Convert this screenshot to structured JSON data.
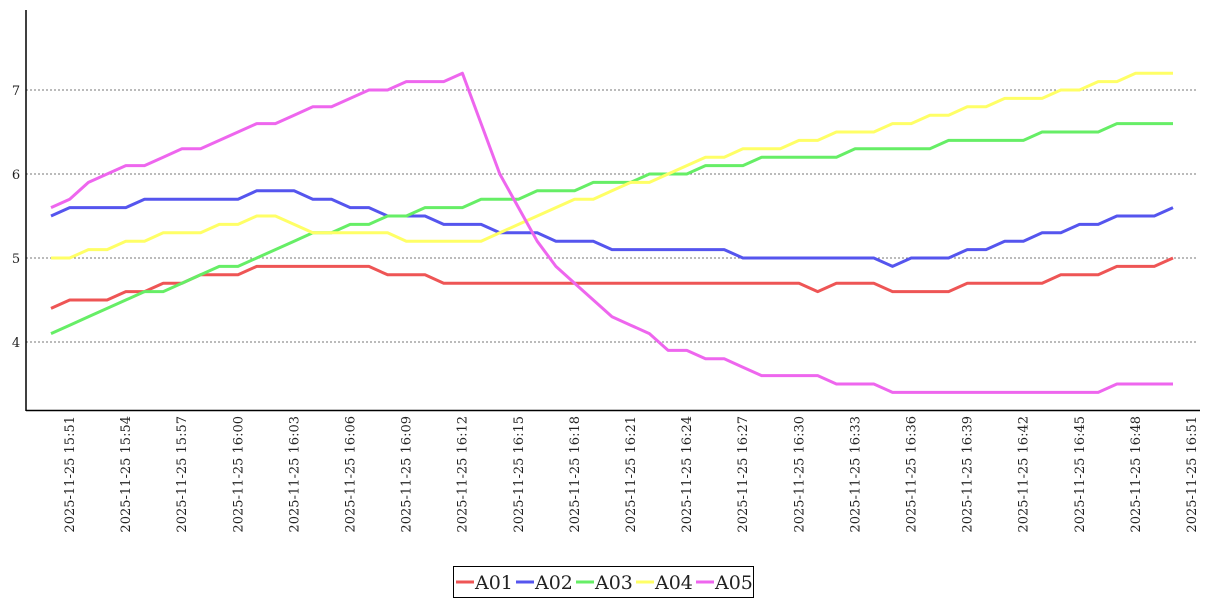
{
  "chart_data": {
    "type": "line",
    "title": "",
    "xlabel": "",
    "ylabel": "",
    "ylim": [
      3.2,
      7.95
    ],
    "yticks": [
      4,
      5,
      6,
      7
    ],
    "grid": "horizontal dotted",
    "legend_position": "bottom-center",
    "x_start": "2025-11-25 15:51",
    "x_step_minutes": 1,
    "x_tick_labels": [
      "2025-11-25 15:51",
      "2025-11-25 15:54",
      "2025-11-25 15:57",
      "2025-11-25 16:00",
      "2025-11-25 16:03",
      "2025-11-25 16:06",
      "2025-11-25 16:09",
      "2025-11-25 16:12",
      "2025-11-25 16:15",
      "2025-11-25 16:18",
      "2025-11-25 16:21",
      "2025-11-25 16:24",
      "2025-11-25 16:27",
      "2025-11-25 16:30",
      "2025-11-25 16:33",
      "2025-11-25 16:36",
      "2025-11-25 16:39",
      "2025-11-25 16:42",
      "2025-11-25 16:45",
      "2025-11-25 16:48",
      "2025-11-25 16:51"
    ],
    "series": [
      {
        "name": "A01",
        "color": "#ee5555",
        "values": [
          4.4,
          4.5,
          4.5,
          4.5,
          4.6,
          4.6,
          4.7,
          4.7,
          4.8,
          4.8,
          4.8,
          4.9,
          4.9,
          4.9,
          4.9,
          4.9,
          4.9,
          4.9,
          4.8,
          4.8,
          4.8,
          4.7,
          4.7,
          4.7,
          4.7,
          4.7,
          4.7,
          4.7,
          4.7,
          4.7,
          4.7,
          4.7,
          4.7,
          4.7,
          4.7,
          4.7,
          4.7,
          4.7,
          4.7,
          4.7,
          4.7,
          4.6,
          4.7,
          4.7,
          4.7,
          4.6,
          4.6,
          4.6,
          4.6,
          4.7,
          4.7,
          4.7,
          4.7,
          4.7,
          4.8,
          4.8,
          4.8,
          4.9,
          4.9,
          4.9,
          5.0
        ]
      },
      {
        "name": "A02",
        "color": "#5555ee",
        "values": [
          5.5,
          5.6,
          5.6,
          5.6,
          5.6,
          5.7,
          5.7,
          5.7,
          5.7,
          5.7,
          5.7,
          5.8,
          5.8,
          5.8,
          5.7,
          5.7,
          5.6,
          5.6,
          5.5,
          5.5,
          5.5,
          5.4,
          5.4,
          5.4,
          5.3,
          5.3,
          5.3,
          5.2,
          5.2,
          5.2,
          5.1,
          5.1,
          5.1,
          5.1,
          5.1,
          5.1,
          5.1,
          5.0,
          5.0,
          5.0,
          5.0,
          5.0,
          5.0,
          5.0,
          5.0,
          4.9,
          5.0,
          5.0,
          5.0,
          5.1,
          5.1,
          5.2,
          5.2,
          5.3,
          5.3,
          5.4,
          5.4,
          5.5,
          5.5,
          5.5,
          5.6
        ]
      },
      {
        "name": "A03",
        "color": "#66ee66",
        "values": [
          4.1,
          4.2,
          4.3,
          4.4,
          4.5,
          4.6,
          4.6,
          4.7,
          4.8,
          4.9,
          4.9,
          5.0,
          5.1,
          5.2,
          5.3,
          5.3,
          5.4,
          5.4,
          5.5,
          5.5,
          5.6,
          5.6,
          5.6,
          5.7,
          5.7,
          5.7,
          5.8,
          5.8,
          5.8,
          5.9,
          5.9,
          5.9,
          6.0,
          6.0,
          6.0,
          6.1,
          6.1,
          6.1,
          6.2,
          6.2,
          6.2,
          6.2,
          6.2,
          6.3,
          6.3,
          6.3,
          6.3,
          6.3,
          6.4,
          6.4,
          6.4,
          6.4,
          6.4,
          6.5,
          6.5,
          6.5,
          6.5,
          6.6,
          6.6,
          6.6,
          6.6
        ]
      },
      {
        "name": "A04",
        "color": "#ffff66",
        "values": [
          5.0,
          5.0,
          5.1,
          5.1,
          5.2,
          5.2,
          5.3,
          5.3,
          5.3,
          5.4,
          5.4,
          5.5,
          5.5,
          5.4,
          5.3,
          5.3,
          5.3,
          5.3,
          5.3,
          5.2,
          5.2,
          5.2,
          5.2,
          5.2,
          5.3,
          5.4,
          5.5,
          5.6,
          5.7,
          5.7,
          5.8,
          5.9,
          5.9,
          6.0,
          6.1,
          6.2,
          6.2,
          6.3,
          6.3,
          6.3,
          6.4,
          6.4,
          6.5,
          6.5,
          6.5,
          6.6,
          6.6,
          6.7,
          6.7,
          6.8,
          6.8,
          6.9,
          6.9,
          6.9,
          7.0,
          7.0,
          7.1,
          7.1,
          7.2,
          7.2,
          7.2
        ]
      },
      {
        "name": "A05",
        "color": "#ee66ee",
        "values": [
          5.6,
          5.7,
          5.9,
          6.0,
          6.1,
          6.1,
          6.2,
          6.3,
          6.3,
          6.4,
          6.5,
          6.6,
          6.6,
          6.7,
          6.8,
          6.8,
          6.9,
          7.0,
          7.0,
          7.1,
          7.1,
          7.1,
          7.2,
          6.6,
          6.0,
          5.6,
          5.2,
          4.9,
          4.7,
          4.5,
          4.3,
          4.2,
          4.1,
          3.9,
          3.9,
          3.8,
          3.8,
          3.7,
          3.6,
          3.6,
          3.6,
          3.6,
          3.5,
          3.5,
          3.5,
          3.4,
          3.4,
          3.4,
          3.4,
          3.4,
          3.4,
          3.4,
          3.4,
          3.4,
          3.4,
          3.4,
          3.4,
          3.5,
          3.5,
          3.5,
          3.5
        ]
      }
    ]
  }
}
